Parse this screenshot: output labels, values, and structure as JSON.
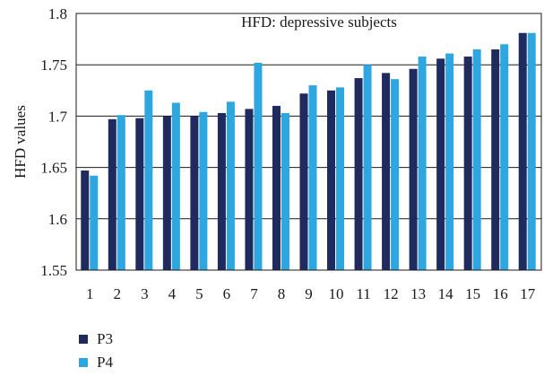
{
  "chart_data": {
    "type": "bar",
    "title": "HFD: depressive subjects",
    "xlabel": "",
    "ylabel": "HFD values",
    "ylim": [
      1.55,
      1.8
    ],
    "yticks": [
      "1.55",
      "1.6",
      "1.65",
      "1.7",
      "1.75",
      "1.8"
    ],
    "grid": true,
    "legend_position": "bottom-left",
    "categories": [
      "1",
      "2",
      "3",
      "4",
      "5",
      "6",
      "7",
      "8",
      "9",
      "10",
      "11",
      "12",
      "13",
      "14",
      "15",
      "16",
      "17"
    ],
    "series": [
      {
        "name": "P3",
        "color": "#1f2a5e",
        "values": [
          1.647,
          1.697,
          1.698,
          1.7,
          1.7,
          1.703,
          1.707,
          1.71,
          1.722,
          1.725,
          1.737,
          1.742,
          1.746,
          1.756,
          1.758,
          1.765,
          1.781
        ]
      },
      {
        "name": "P4",
        "color": "#2ea6e0",
        "values": [
          1.642,
          1.701,
          1.725,
          1.713,
          1.704,
          1.714,
          1.752,
          1.703,
          1.73,
          1.728,
          1.75,
          1.736,
          1.758,
          1.761,
          1.765,
          1.77,
          1.781
        ]
      }
    ]
  }
}
